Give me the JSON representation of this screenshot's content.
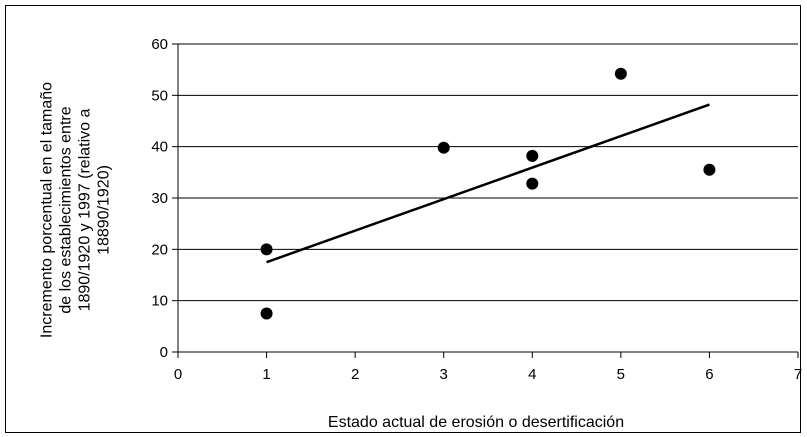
{
  "chart_data": {
    "type": "scatter",
    "title": "",
    "xlabel": "Estado actual de erosión o desertificación",
    "ylabel_lines": [
      "Incremento porcentual en el tamaño",
      "de los establecimientos entre",
      "1890/1920 y 1997 (relativo a",
      "18890/1920)"
    ],
    "xlim": [
      0,
      7
    ],
    "ylim": [
      0,
      60
    ],
    "xticks": [
      "0",
      "1",
      "2",
      "3",
      "4",
      "5",
      "6",
      "7"
    ],
    "yticks": [
      "0",
      "10",
      "20",
      "30",
      "40",
      "50",
      "60"
    ],
    "grid": "horizontal",
    "legend": "none",
    "series": [
      {
        "points": [
          {
            "x": 1,
            "y": 20
          },
          {
            "x": 1,
            "y": 7.5
          },
          {
            "x": 3,
            "y": 39.8
          },
          {
            "x": 4,
            "y": 38.2
          },
          {
            "x": 4,
            "y": 32.8
          },
          {
            "x": 5,
            "y": 54.2
          },
          {
            "x": 6,
            "y": 35.5
          }
        ]
      }
    ],
    "trendline": {
      "x": [
        1,
        6
      ],
      "y": [
        17.5,
        48.2
      ]
    },
    "colors": {
      "points": "#000000",
      "trendline": "#000000",
      "grid": "#000000",
      "background": "#ffffff"
    }
  }
}
